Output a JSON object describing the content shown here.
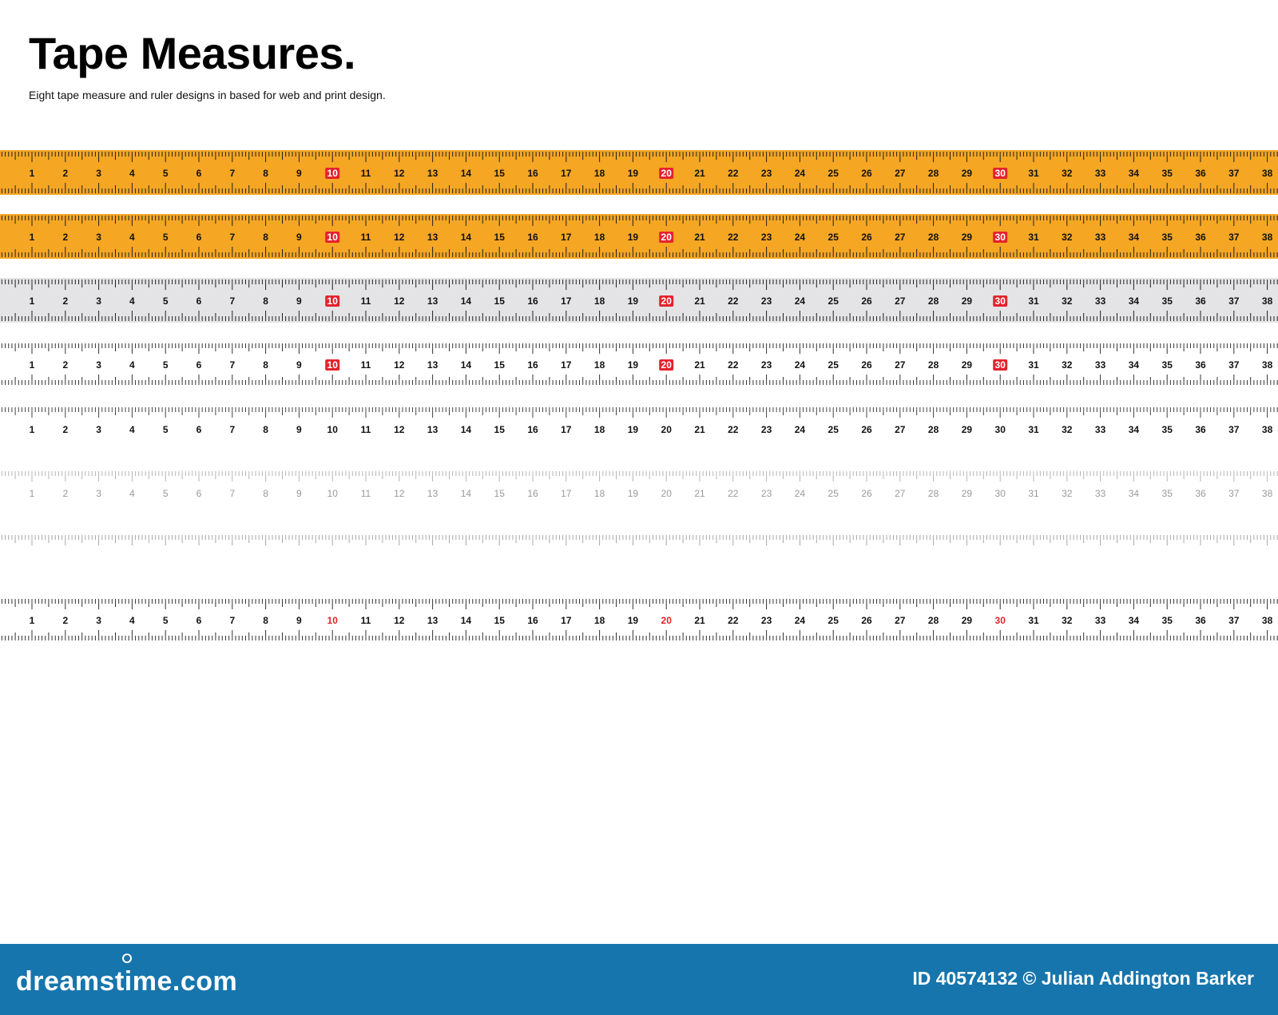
{
  "header": {
    "title": "Tape Measures.",
    "subtitle": "Eight tape measure and ruler designs in based for web and print design."
  },
  "tapes": {
    "labels": [
      "1",
      "2",
      "3",
      "4",
      "5",
      "6",
      "7",
      "8",
      "9",
      "10",
      "11",
      "12",
      "13",
      "14",
      "15",
      "16",
      "17",
      "18",
      "19",
      "20",
      "21",
      "22",
      "23",
      "24",
      "25",
      "26",
      "27",
      "28",
      "29",
      "30",
      "31",
      "32",
      "33",
      "34",
      "35",
      "36",
      "37",
      "38"
    ],
    "highlighted": [
      "10",
      "20",
      "30"
    ],
    "items": [
      {
        "style": "orange-boxed",
        "background": "#f5a623"
      },
      {
        "style": "orange-boxed",
        "background": "#f5a623"
      },
      {
        "style": "grey-boxed",
        "background": "#e4e4e6"
      },
      {
        "style": "white-boxed",
        "background": "#ffffff"
      },
      {
        "style": "plain-black",
        "background": "#ffffff"
      },
      {
        "style": "light-grey",
        "background": "#ffffff"
      },
      {
        "style": "ticks-only",
        "background": "#ffffff"
      },
      {
        "style": "red-text",
        "background": "#ffffff"
      }
    ]
  },
  "colors": {
    "orange": "#f5a623",
    "grey_band": "#e4e4e6",
    "highlight_red": "#e3232c",
    "footer_blue": "#1675ad",
    "label_grey": "#9a9a9a"
  },
  "footer": {
    "brand": "dreamstime.com",
    "credit": "ID 40574132 © Julian Addington Barker"
  }
}
